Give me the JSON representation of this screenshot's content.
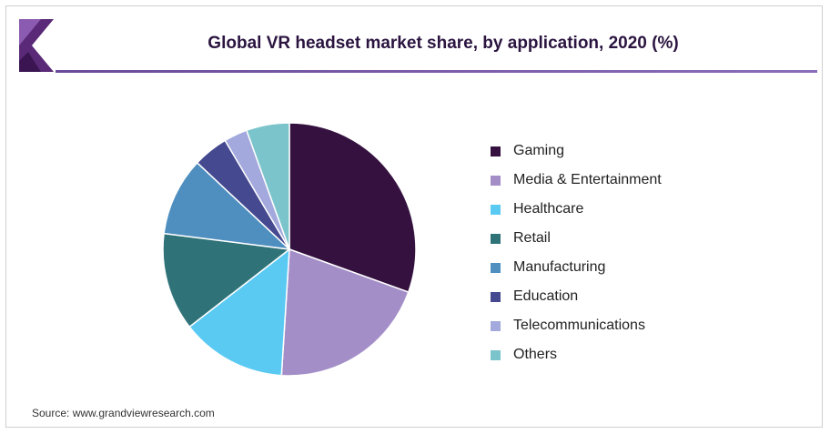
{
  "title": "Global VR headset market share, by application, 2020 (%)",
  "source": "Source: www.grandviewresearch.com",
  "chart_data": {
    "type": "pie",
    "title": "Global VR headset market share, by application, 2020 (%)",
    "categories": [
      "Gaming",
      "Media & Entertainment",
      "Healthcare",
      "Retail",
      "Manufacturing",
      "Education",
      "Telecommunications",
      "Others"
    ],
    "values": [
      30.5,
      20.5,
      13.5,
      12.5,
      10.0,
      4.5,
      3.0,
      5.5
    ],
    "colors": [
      "#34113f",
      "#a48ec8",
      "#5bcaf3",
      "#2f7379",
      "#4f8fbf",
      "#45498f",
      "#a3a9dc",
      "#7cc4cb"
    ],
    "legend": "right"
  }
}
